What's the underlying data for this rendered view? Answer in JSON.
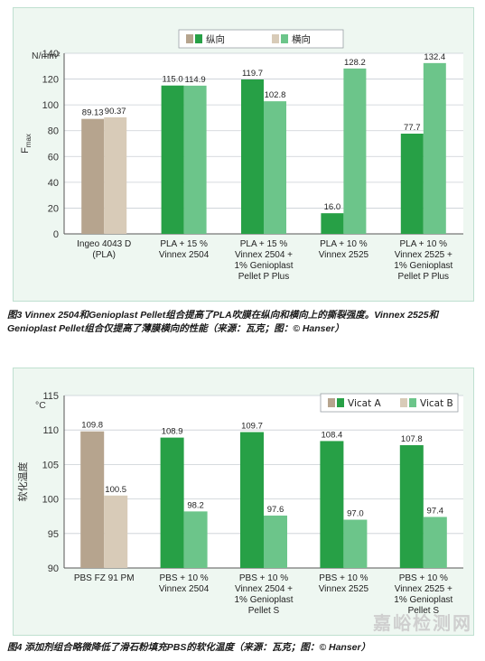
{
  "chart_data": [
    {
      "type": "bar",
      "title": "",
      "unit_label": "N/mm²",
      "ylabel": "F",
      "ylabel_sub": "max",
      "ylim": [
        0,
        140
      ],
      "yticks": [
        0,
        20,
        40,
        60,
        80,
        100,
        120,
        140
      ],
      "legend_position": "top-center",
      "categories": [
        [
          "Ingeo 4043 D",
          "(PLA)"
        ],
        [
          "PLA + 15 %",
          "Vinnex 2504"
        ],
        [
          "PLA + 15 %",
          "Vinnex 2504 +",
          "1% Genioplast",
          "Pellet P Plus"
        ],
        [
          "PLA + 10 %",
          "Vinnex 2525"
        ],
        [
          "PLA + 10 %",
          "Vinnex 2525 +",
          "1% Genioplast",
          "Pellet P Plus"
        ]
      ],
      "series": [
        {
          "name": "纵向",
          "values": [
            89.13,
            115.0,
            119.7,
            16.0,
            77.7
          ],
          "labels": [
            "89.13",
            "115.0",
            "119.7",
            "16.0",
            "77.7"
          ]
        },
        {
          "name": "横向",
          "values": [
            90.37,
            114.9,
            102.8,
            128.2,
            132.4
          ],
          "labels": [
            "90.37",
            "114.9",
            "102.8",
            "128.2",
            "132.4"
          ]
        }
      ],
      "colors": {
        "series1": "#27a046",
        "series2": "#6cc58a",
        "series1_first": "#b6a48e",
        "series2_first": "#d8cbb8"
      }
    },
    {
      "type": "bar",
      "title": "",
      "unit_label": "°C",
      "ylabel": "软化温度",
      "ylim": [
        90,
        115
      ],
      "yticks": [
        90,
        95,
        100,
        105,
        110,
        115
      ],
      "legend_position": "top-right",
      "categories": [
        [
          "PBS FZ 91 PM"
        ],
        [
          "PBS + 10 %",
          "Vinnex 2504"
        ],
        [
          "PBS + 10 %",
          "Vinnex 2504 +",
          "1% Genioplast",
          "Pellet S"
        ],
        [
          "PBS + 10 %",
          "Vinnex 2525"
        ],
        [
          "PBS + 10 %",
          "Vinnex 2525 +",
          "1% Genioplast",
          "Pellet S"
        ]
      ],
      "series": [
        {
          "name": "Vicat A",
          "values": [
            109.8,
            108.9,
            109.7,
            108.4,
            107.8
          ],
          "labels": [
            "109.8",
            "108.9",
            "109.7",
            "108.4",
            "107.8"
          ]
        },
        {
          "name": "Vicat B",
          "values": [
            100.5,
            98.2,
            97.6,
            97.0,
            97.4
          ],
          "labels": [
            "100.5",
            "98.2",
            "97.6",
            "97.0",
            "97.4"
          ]
        }
      ],
      "colors": {
        "series1": "#27a046",
        "series2": "#6cc58a",
        "series1_first": "#b6a48e",
        "series2_first": "#d8cbb8"
      }
    }
  ],
  "captions": {
    "fig3": "图3 Vinnex 2504和Genioplast Pellet组合提高了PLA吹膜在纵向和横向上的撕裂强度。Vinnex 2525和Genioplast Pellet组合仅提高了薄膜横向的性能（来源：瓦克；图：© Hanser）",
    "fig4": "图4 添加剂组合略微降低了滑石粉填充PBS的软化温度（来源：瓦克；图：© Hanser）"
  },
  "watermark": "嘉峪检测网"
}
